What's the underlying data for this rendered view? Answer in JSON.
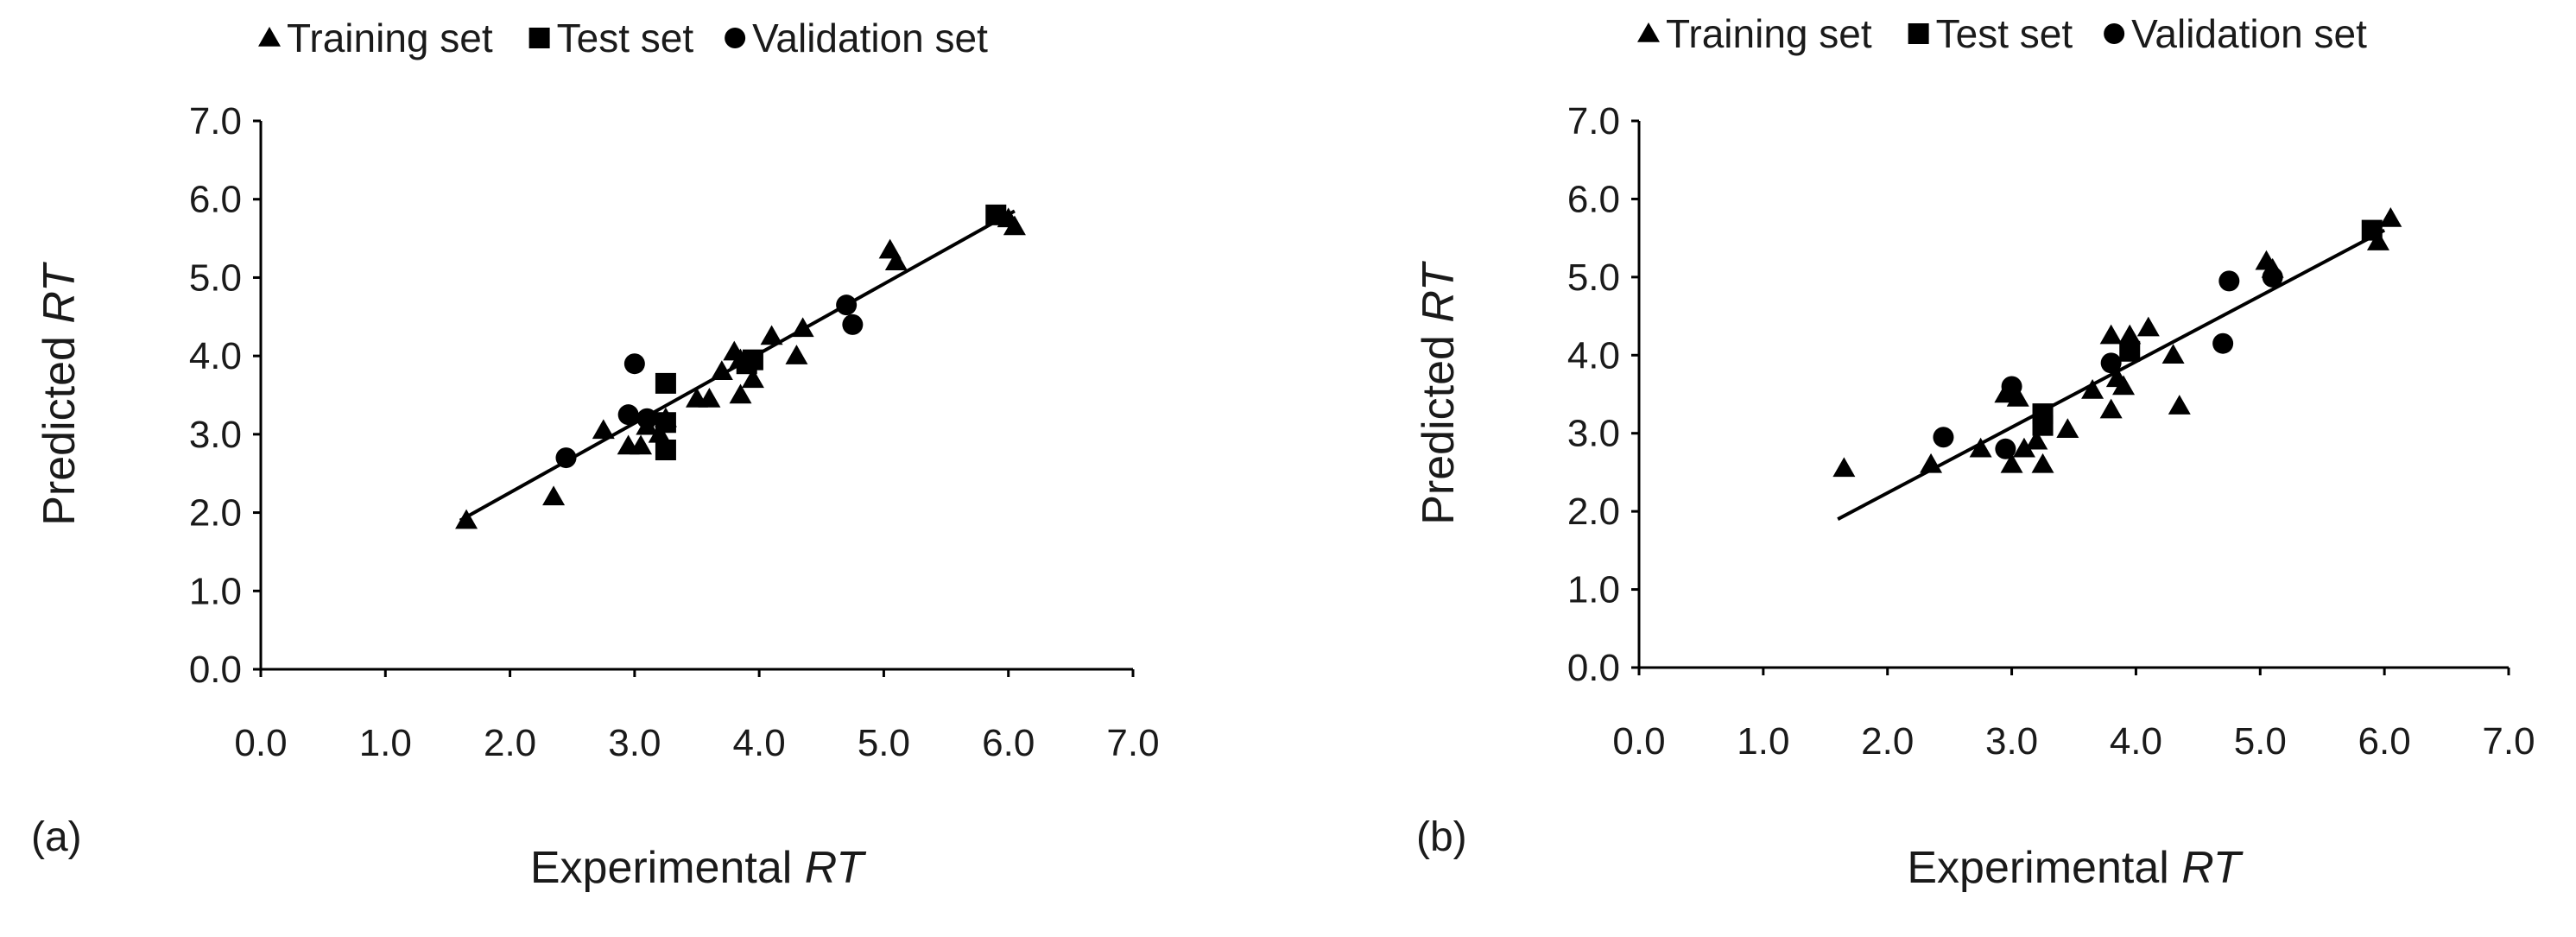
{
  "figure": {
    "legend_labels": [
      "Training set",
      "Test set",
      "Validation set"
    ]
  },
  "chart_data": [
    {
      "type": "scatter",
      "panel_label": "(a)",
      "title": "",
      "xlabel": "Experimental RT",
      "ylabel": "Predicted RT",
      "xlim": [
        0,
        7
      ],
      "ylim": [
        0,
        7
      ],
      "xticks": [
        "0.0",
        "1.0",
        "2.0",
        "3.0",
        "4.0",
        "5.0",
        "6.0",
        "7.0"
      ],
      "yticks": [
        "0.0",
        "1.0",
        "2.0",
        "3.0",
        "4.0",
        "5.0",
        "6.0",
        "7.0"
      ],
      "grid": false,
      "legend_position": "top",
      "fit_line": {
        "x": [
          1.6,
          6.05
        ],
        "y": [
          1.9,
          5.85
        ]
      },
      "series": [
        {
          "name": "Training set",
          "marker": "triangle",
          "points": [
            [
              1.65,
              1.9
            ],
            [
              2.35,
              2.2
            ],
            [
              2.75,
              3.05
            ],
            [
              2.95,
              2.85
            ],
            [
              3.05,
              2.85
            ],
            [
              3.1,
              3.1
            ],
            [
              3.2,
              3.0
            ],
            [
              3.25,
              3.2
            ],
            [
              3.5,
              3.45
            ],
            [
              3.6,
              3.45
            ],
            [
              3.7,
              3.8
            ],
            [
              3.8,
              4.05
            ],
            [
              3.85,
              3.95
            ],
            [
              3.85,
              3.5
            ],
            [
              3.95,
              3.7
            ],
            [
              4.1,
              4.25
            ],
            [
              4.3,
              4.0
            ],
            [
              4.35,
              4.35
            ],
            [
              5.05,
              5.35
            ],
            [
              5.1,
              5.2
            ],
            [
              6.0,
              5.75
            ],
            [
              6.05,
              5.65
            ]
          ]
        },
        {
          "name": "Test set",
          "marker": "square",
          "points": [
            [
              3.25,
              3.65
            ],
            [
              3.25,
              3.15
            ],
            [
              3.25,
              2.8
            ],
            [
              3.9,
              3.9
            ],
            [
              3.95,
              3.95
            ],
            [
              5.9,
              5.8
            ]
          ]
        },
        {
          "name": "Validation set",
          "marker": "circle",
          "points": [
            [
              2.45,
              2.7
            ],
            [
              2.95,
              3.25
            ],
            [
              3.0,
              3.9
            ],
            [
              3.1,
              3.2
            ],
            [
              4.7,
              4.65
            ],
            [
              4.75,
              4.4
            ]
          ]
        }
      ]
    },
    {
      "type": "scatter",
      "panel_label": "(b)",
      "title": "",
      "xlabel": "Experimental RT",
      "ylabel": "Predicted RT",
      "xlim": [
        0,
        7
      ],
      "ylim": [
        0,
        7
      ],
      "xticks": [
        "0.0",
        "1.0",
        "2.0",
        "3.0",
        "4.0",
        "5.0",
        "6.0",
        "7.0"
      ],
      "yticks": [
        "0.0",
        "1.0",
        "2.0",
        "3.0",
        "4.0",
        "5.0",
        "6.0",
        "7.0"
      ],
      "grid": false,
      "legend_position": "top",
      "fit_line": {
        "x": [
          1.6,
          6.0
        ],
        "y": [
          1.9,
          5.6
        ]
      },
      "series": [
        {
          "name": "Training set",
          "marker": "triangle",
          "points": [
            [
              1.65,
              2.55
            ],
            [
              2.35,
              2.6
            ],
            [
              2.75,
              2.8
            ],
            [
              2.95,
              3.5
            ],
            [
              3.0,
              2.6
            ],
            [
              3.05,
              3.45
            ],
            [
              3.1,
              2.8
            ],
            [
              3.2,
              2.9
            ],
            [
              3.25,
              2.6
            ],
            [
              3.45,
              3.05
            ],
            [
              3.65,
              3.55
            ],
            [
              3.8,
              4.25
            ],
            [
              3.8,
              3.3
            ],
            [
              3.85,
              3.7
            ],
            [
              3.9,
              3.6
            ],
            [
              3.95,
              4.25
            ],
            [
              4.1,
              4.35
            ],
            [
              4.3,
              4.0
            ],
            [
              4.35,
              3.35
            ],
            [
              5.05,
              5.2
            ],
            [
              5.1,
              5.1
            ],
            [
              5.95,
              5.45
            ],
            [
              6.05,
              5.75
            ]
          ]
        },
        {
          "name": "Test set",
          "marker": "square",
          "points": [
            [
              3.25,
              3.25
            ],
            [
              3.25,
              3.1
            ],
            [
              3.95,
              4.05
            ],
            [
              5.9,
              5.6
            ]
          ]
        },
        {
          "name": "Validation set",
          "marker": "circle",
          "points": [
            [
              2.45,
              2.95
            ],
            [
              2.95,
              2.8
            ],
            [
              3.0,
              3.6
            ],
            [
              3.8,
              3.9
            ],
            [
              4.7,
              4.15
            ],
            [
              4.75,
              4.95
            ],
            [
              5.1,
              5.0
            ]
          ]
        }
      ]
    }
  ]
}
